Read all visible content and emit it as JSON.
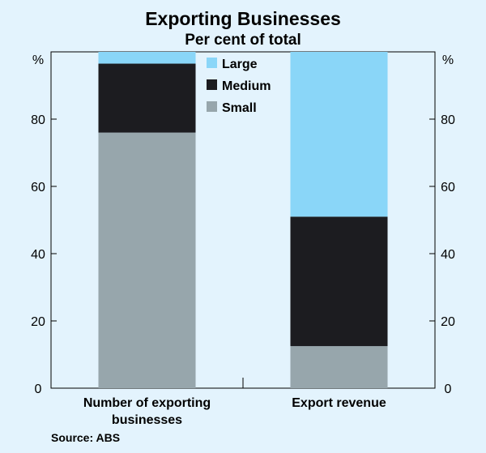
{
  "chart_data": {
    "type": "bar",
    "stacked": true,
    "title": "Exporting Businesses",
    "subtitle": "Per cent of total",
    "ylabel_left": "%",
    "ylabel_right": "%",
    "ylim": [
      0,
      100
    ],
    "yticks": [
      0,
      20,
      40,
      60,
      80
    ],
    "categories": [
      [
        "Number of exporting",
        "businesses"
      ],
      [
        "Export revenue"
      ]
    ],
    "series": [
      {
        "name": "Small",
        "color": "#97a6ac",
        "values": [
          76,
          12.5
        ]
      },
      {
        "name": "Medium",
        "color": "#1c1c20",
        "values": [
          20.5,
          38.5
        ]
      },
      {
        "name": "Large",
        "color": "#8ad6f8",
        "values": [
          3.5,
          49
        ]
      }
    ],
    "legend": {
      "position": "top-center",
      "order": [
        "Large",
        "Medium",
        "Small"
      ]
    },
    "grid": false,
    "source": "Source: ABS"
  }
}
